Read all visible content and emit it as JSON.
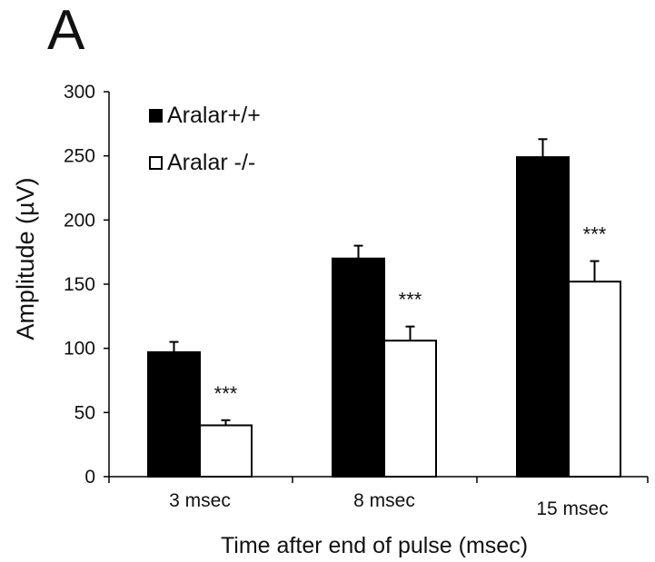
{
  "panel_label": "A",
  "chart_data": {
    "type": "bar",
    "title": "",
    "xlabel": "Time after end of pulse (msec)",
    "ylabel": "Amplitude (µV)",
    "ylim": [
      0,
      300
    ],
    "yticks": [
      0,
      50,
      100,
      150,
      200,
      250,
      300
    ],
    "categories": [
      "3 msec",
      "8 msec",
      "15 msec"
    ],
    "series": [
      {
        "name": "Aralar+/+",
        "values": [
          97,
          170,
          249
        ],
        "errors": [
          8,
          10,
          14
        ],
        "color": "#000000"
      },
      {
        "name": "Aralar -/-",
        "values": [
          40,
          106,
          152
        ],
        "errors": [
          4,
          11,
          16
        ],
        "color": "#ffffff"
      }
    ],
    "annotations": [
      "***",
      "***",
      "***"
    ],
    "legend_position": "top-left",
    "grid": false
  }
}
